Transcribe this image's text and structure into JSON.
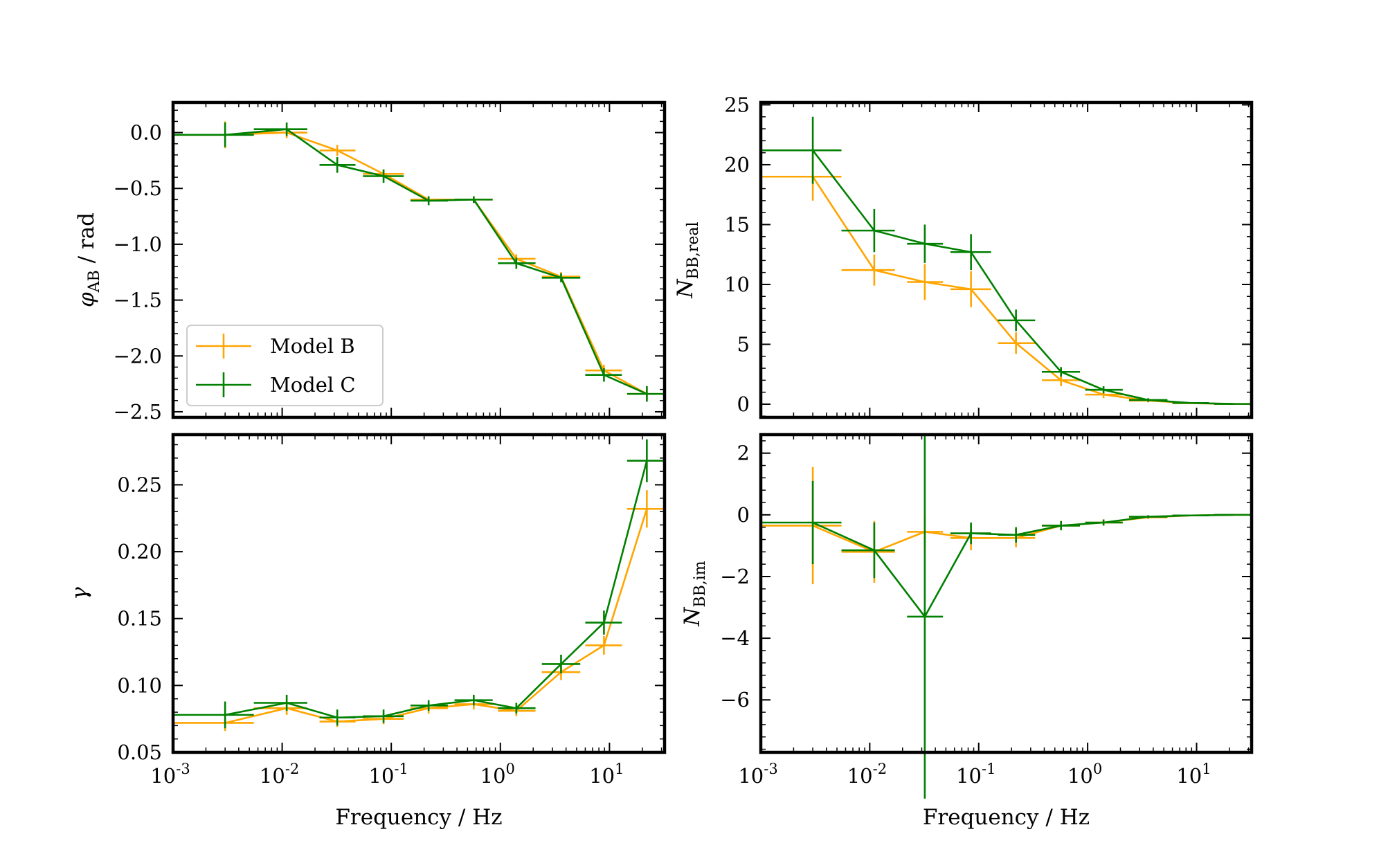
{
  "figure": {
    "shared_xlabel": "Frequency / Hz",
    "colors": {
      "model_b": "#FFA500",
      "model_c": "#008000",
      "frame": "#000000"
    }
  },
  "legend": {
    "entries": [
      {
        "label": "Model B",
        "color": "#FFA500"
      },
      {
        "label": "Model C",
        "color": "#008000"
      }
    ],
    "placement": "lower-left"
  },
  "chart_data": [
    {
      "id": "phase",
      "type": "line",
      "xscale": "log",
      "xlim": [
        0.001,
        32
      ],
      "ylim": [
        -2.55,
        0.27
      ],
      "xlabel": "",
      "ylabel": {
        "base": "φ",
        "sub": "AB",
        "rest": " / rad"
      },
      "yticks": [
        0.0,
        -0.5,
        -1.0,
        -1.5,
        -2.0,
        -2.5
      ],
      "ytick_labels": [
        "0.0",
        "−0.5",
        "−1.0",
        "−1.5",
        "−2.0",
        "−2.5"
      ],
      "xticks": [],
      "series": [
        {
          "name": "Model B",
          "points": [
            {
              "x": 0.003,
              "xlo": 0.001,
              "xhi": 0.0055,
              "y": -0.02,
              "err": 0.12
            },
            {
              "x": 0.011,
              "xlo": 0.0055,
              "xhi": 0.017,
              "y": 0.0,
              "err": 0.05
            },
            {
              "x": 0.032,
              "xlo": 0.022,
              "xhi": 0.047,
              "y": -0.16,
              "err": 0.05
            },
            {
              "x": 0.085,
              "xlo": 0.055,
              "xhi": 0.13,
              "y": -0.37,
              "err": 0.04
            },
            {
              "x": 0.22,
              "xlo": 0.15,
              "xhi": 0.33,
              "y": -0.6,
              "err": 0.03
            },
            {
              "x": 0.57,
              "xlo": 0.38,
              "xhi": 0.85,
              "y": -0.6,
              "err": 0.03
            },
            {
              "x": 1.4,
              "xlo": 0.95,
              "xhi": 2.1,
              "y": -1.13,
              "err": 0.04
            },
            {
              "x": 3.6,
              "xlo": 2.4,
              "xhi": 5.4,
              "y": -1.29,
              "err": 0.04
            },
            {
              "x": 8.9,
              "xlo": 6.0,
              "xhi": 13.0,
              "y": -2.13,
              "err": 0.05
            },
            {
              "x": 22.0,
              "xlo": 14.5,
              "xhi": 32.0,
              "y": -2.34,
              "err": 0.05
            }
          ]
        },
        {
          "name": "Model C",
          "points": [
            {
              "x": 0.003,
              "xlo": 0.001,
              "xhi": 0.0055,
              "y": -0.02,
              "err": 0.11
            },
            {
              "x": 0.011,
              "xlo": 0.0055,
              "xhi": 0.017,
              "y": 0.03,
              "err": 0.06
            },
            {
              "x": 0.032,
              "xlo": 0.022,
              "xhi": 0.047,
              "y": -0.29,
              "err": 0.07
            },
            {
              "x": 0.085,
              "xlo": 0.055,
              "xhi": 0.13,
              "y": -0.39,
              "err": 0.06
            },
            {
              "x": 0.22,
              "xlo": 0.15,
              "xhi": 0.33,
              "y": -0.61,
              "err": 0.04
            },
            {
              "x": 0.57,
              "xlo": 0.38,
              "xhi": 0.85,
              "y": -0.6,
              "err": 0.03
            },
            {
              "x": 1.4,
              "xlo": 0.95,
              "xhi": 2.1,
              "y": -1.17,
              "err": 0.05
            },
            {
              "x": 3.6,
              "xlo": 2.4,
              "xhi": 5.4,
              "y": -1.3,
              "err": 0.04
            },
            {
              "x": 8.9,
              "xlo": 6.0,
              "xhi": 13.0,
              "y": -2.17,
              "err": 0.06
            },
            {
              "x": 22.0,
              "xlo": 14.5,
              "xhi": 32.0,
              "y": -2.34,
              "err": 0.07
            }
          ]
        }
      ]
    },
    {
      "id": "nbb-real",
      "type": "line",
      "xscale": "log",
      "xlim": [
        0.001,
        32
      ],
      "ylim": [
        -1.1,
        25.2
      ],
      "xlabel": "",
      "ylabel": {
        "base": "N",
        "sub": "BB,real",
        "rest": ""
      },
      "yticks": [
        0,
        5,
        10,
        15,
        20,
        25
      ],
      "ytick_labels": [
        "0",
        "5",
        "10",
        "15",
        "20",
        "25"
      ],
      "xticks": [],
      "series": [
        {
          "name": "Model B",
          "points": [
            {
              "x": 0.003,
              "xlo": 0.001,
              "xhi": 0.0055,
              "y": 19.0,
              "err": 2.0
            },
            {
              "x": 0.011,
              "xlo": 0.0055,
              "xhi": 0.017,
              "y": 11.2,
              "err": 1.3
            },
            {
              "x": 0.032,
              "xlo": 0.022,
              "xhi": 0.047,
              "y": 10.2,
              "err": 1.5
            },
            {
              "x": 0.085,
              "xlo": 0.055,
              "xhi": 0.13,
              "y": 9.6,
              "err": 1.5
            },
            {
              "x": 0.22,
              "xlo": 0.15,
              "xhi": 0.33,
              "y": 5.1,
              "err": 0.9
            },
            {
              "x": 0.57,
              "xlo": 0.38,
              "xhi": 0.85,
              "y": 2.0,
              "err": 0.5
            },
            {
              "x": 1.4,
              "xlo": 0.95,
              "xhi": 2.1,
              "y": 0.8,
              "err": 0.3
            },
            {
              "x": 3.6,
              "xlo": 2.4,
              "xhi": 5.4,
              "y": 0.3,
              "err": 0.15
            },
            {
              "x": 8.9,
              "xlo": 6.0,
              "xhi": 13.0,
              "y": 0.08,
              "err": 0.05
            },
            {
              "x": 22.0,
              "xlo": 14.5,
              "xhi": 32.0,
              "y": 0.02,
              "err": 0.02
            }
          ]
        },
        {
          "name": "Model C",
          "points": [
            {
              "x": 0.003,
              "xlo": 0.001,
              "xhi": 0.0055,
              "y": 21.2,
              "err": 2.8
            },
            {
              "x": 0.011,
              "xlo": 0.0055,
              "xhi": 0.017,
              "y": 14.5,
              "err": 1.8
            },
            {
              "x": 0.032,
              "xlo": 0.022,
              "xhi": 0.047,
              "y": 13.4,
              "err": 1.6
            },
            {
              "x": 0.085,
              "xlo": 0.055,
              "xhi": 0.13,
              "y": 12.7,
              "err": 1.5
            },
            {
              "x": 0.22,
              "xlo": 0.15,
              "xhi": 0.33,
              "y": 7.0,
              "err": 0.9
            },
            {
              "x": 0.57,
              "xlo": 0.38,
              "xhi": 0.85,
              "y": 2.7,
              "err": 0.4
            },
            {
              "x": 1.4,
              "xlo": 0.95,
              "xhi": 2.1,
              "y": 1.2,
              "err": 0.3
            },
            {
              "x": 3.6,
              "xlo": 2.4,
              "xhi": 5.4,
              "y": 0.35,
              "err": 0.15
            },
            {
              "x": 8.9,
              "xlo": 6.0,
              "xhi": 13.0,
              "y": 0.1,
              "err": 0.05
            },
            {
              "x": 22.0,
              "xlo": 14.5,
              "xhi": 32.0,
              "y": 0.02,
              "err": 0.02
            }
          ]
        }
      ]
    },
    {
      "id": "gamma",
      "type": "line",
      "xscale": "log",
      "xlim": [
        0.001,
        32
      ],
      "ylim": [
        0.05,
        0.2875
      ],
      "xlabel": "Frequency / Hz",
      "ylabel": {
        "base": "γ",
        "sub": "",
        "rest": ""
      },
      "yticks": [
        0.05,
        0.1,
        0.15,
        0.2,
        0.25
      ],
      "ytick_labels": [
        "0.05",
        "0.10",
        "0.15",
        "0.20",
        "0.25"
      ],
      "xticks": [
        -3,
        -2,
        -1,
        0,
        1
      ],
      "series": [
        {
          "name": "Model B",
          "points": [
            {
              "x": 0.003,
              "xlo": 0.001,
              "xhi": 0.0055,
              "y": 0.072,
              "err": 0.006
            },
            {
              "x": 0.011,
              "xlo": 0.0055,
              "xhi": 0.017,
              "y": 0.083,
              "err": 0.005
            },
            {
              "x": 0.032,
              "xlo": 0.022,
              "xhi": 0.047,
              "y": 0.073,
              "err": 0.004
            },
            {
              "x": 0.085,
              "xlo": 0.055,
              "xhi": 0.13,
              "y": 0.075,
              "err": 0.004
            },
            {
              "x": 0.22,
              "xlo": 0.15,
              "xhi": 0.33,
              "y": 0.083,
              "err": 0.004
            },
            {
              "x": 0.57,
              "xlo": 0.38,
              "xhi": 0.85,
              "y": 0.086,
              "err": 0.004
            },
            {
              "x": 1.4,
              "xlo": 0.95,
              "xhi": 2.1,
              "y": 0.081,
              "err": 0.004
            },
            {
              "x": 3.6,
              "xlo": 2.4,
              "xhi": 5.4,
              "y": 0.11,
              "err": 0.006
            },
            {
              "x": 8.9,
              "xlo": 6.0,
              "xhi": 13.0,
              "y": 0.13,
              "err": 0.007
            },
            {
              "x": 22.0,
              "xlo": 14.5,
              "xhi": 32.0,
              "y": 0.232,
              "err": 0.014
            }
          ]
        },
        {
          "name": "Model C",
          "points": [
            {
              "x": 0.003,
              "xlo": 0.001,
              "xhi": 0.0055,
              "y": 0.078,
              "err": 0.01
            },
            {
              "x": 0.011,
              "xlo": 0.0055,
              "xhi": 0.017,
              "y": 0.087,
              "err": 0.006
            },
            {
              "x": 0.032,
              "xlo": 0.022,
              "xhi": 0.047,
              "y": 0.076,
              "err": 0.006
            },
            {
              "x": 0.085,
              "xlo": 0.055,
              "xhi": 0.13,
              "y": 0.077,
              "err": 0.005
            },
            {
              "x": 0.22,
              "xlo": 0.15,
              "xhi": 0.33,
              "y": 0.085,
              "err": 0.004
            },
            {
              "x": 0.57,
              "xlo": 0.38,
              "xhi": 0.85,
              "y": 0.089,
              "err": 0.004
            },
            {
              "x": 1.4,
              "xlo": 0.95,
              "xhi": 2.1,
              "y": 0.083,
              "err": 0.004
            },
            {
              "x": 3.6,
              "xlo": 2.4,
              "xhi": 5.4,
              "y": 0.116,
              "err": 0.007
            },
            {
              "x": 8.9,
              "xlo": 6.0,
              "xhi": 13.0,
              "y": 0.147,
              "err": 0.009
            },
            {
              "x": 22.0,
              "xlo": 14.5,
              "xhi": 32.0,
              "y": 0.268,
              "err": 0.016
            }
          ]
        }
      ]
    },
    {
      "id": "nbb-im",
      "type": "line",
      "xscale": "log",
      "xlim": [
        0.001,
        32
      ],
      "ylim": [
        -7.7,
        2.6
      ],
      "xlabel": "Frequency / Hz",
      "ylabel": {
        "base": "N",
        "sub": "BB,im",
        "rest": ""
      },
      "yticks": [
        2,
        0,
        -2,
        -4,
        -6
      ],
      "ytick_labels": [
        "2",
        "0",
        "−2",
        "−4",
        "−6"
      ],
      "xticks": [
        -3,
        -2,
        -1,
        0,
        1
      ],
      "series": [
        {
          "name": "Model B",
          "points": [
            {
              "x": 0.003,
              "xlo": 0.001,
              "xhi": 0.0055,
              "y": -0.35,
              "err": 1.9
            },
            {
              "x": 0.011,
              "xlo": 0.0055,
              "xhi": 0.017,
              "y": -1.2,
              "err": 1.0
            },
            {
              "x": 0.032,
              "xlo": 0.022,
              "xhi": 0.047,
              "y": -0.55,
              "err": 0.5
            },
            {
              "x": 0.085,
              "xlo": 0.055,
              "xhi": 0.13,
              "y": -0.75,
              "err": 0.4
            },
            {
              "x": 0.22,
              "xlo": 0.15,
              "xhi": 0.33,
              "y": -0.75,
              "err": 0.3
            },
            {
              "x": 0.57,
              "xlo": 0.38,
              "xhi": 0.85,
              "y": -0.35,
              "err": 0.15
            },
            {
              "x": 1.4,
              "xlo": 0.95,
              "xhi": 2.1,
              "y": -0.25,
              "err": 0.1
            },
            {
              "x": 3.6,
              "xlo": 2.4,
              "xhi": 5.4,
              "y": -0.08,
              "err": 0.05
            },
            {
              "x": 8.9,
              "xlo": 6.0,
              "xhi": 13.0,
              "y": -0.02,
              "err": 0.02
            },
            {
              "x": 22.0,
              "xlo": 14.5,
              "xhi": 32.0,
              "y": 0.0,
              "err": 0.01
            }
          ]
        },
        {
          "name": "Model C",
          "points": [
            {
              "x": 0.003,
              "xlo": 0.001,
              "xhi": 0.0055,
              "y": -0.25,
              "err": 1.35
            },
            {
              "x": 0.011,
              "xlo": 0.0055,
              "xhi": 0.017,
              "y": -1.15,
              "err": 0.9
            },
            {
              "x": 0.032,
              "xlo": 0.022,
              "xhi": 0.047,
              "y": -3.3,
              "err": 5.9
            },
            {
              "x": 0.085,
              "xlo": 0.055,
              "xhi": 0.13,
              "y": -0.6,
              "err": 0.35
            },
            {
              "x": 0.22,
              "xlo": 0.15,
              "xhi": 0.33,
              "y": -0.65,
              "err": 0.25
            },
            {
              "x": 0.57,
              "xlo": 0.38,
              "xhi": 0.85,
              "y": -0.35,
              "err": 0.15
            },
            {
              "x": 1.4,
              "xlo": 0.95,
              "xhi": 2.1,
              "y": -0.25,
              "err": 0.1
            },
            {
              "x": 3.6,
              "xlo": 2.4,
              "xhi": 5.4,
              "y": -0.06,
              "err": 0.05
            },
            {
              "x": 8.9,
              "xlo": 6.0,
              "xhi": 13.0,
              "y": -0.02,
              "err": 0.02
            },
            {
              "x": 22.0,
              "xlo": 14.5,
              "xhi": 32.0,
              "y": 0.0,
              "err": 0.01
            }
          ]
        }
      ]
    }
  ]
}
